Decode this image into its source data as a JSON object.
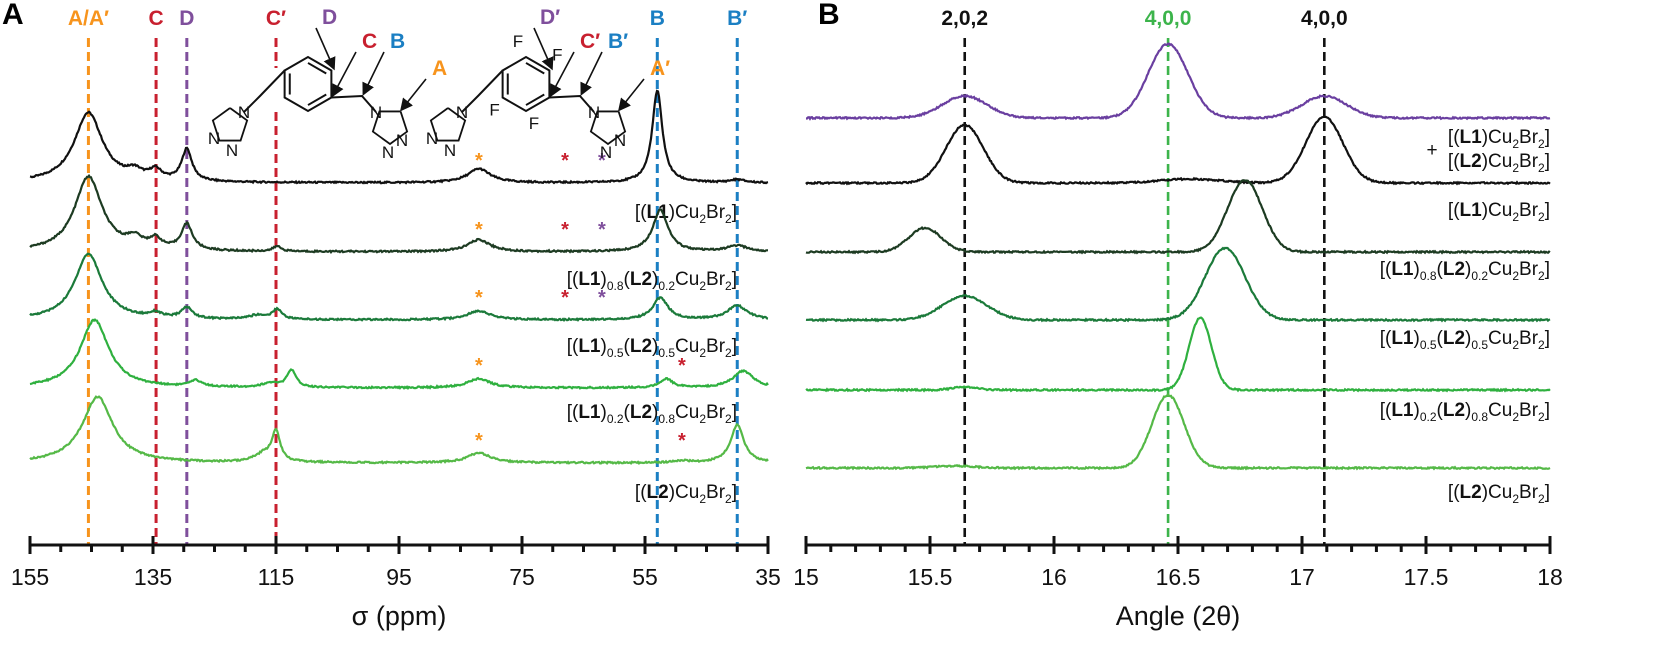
{
  "figure": {
    "panel_a_letter": "A",
    "panel_b_letter": "B",
    "colors": {
      "orange": "#f7941d",
      "red": "#c8202f",
      "purple": "#7f4f9c",
      "blue": "#1b7fc3",
      "green_ref": "#3cb44b",
      "black": "#111111",
      "purple_trace": "#6a3fa0",
      "trace_black": "#111111",
      "trace_dark": "#1d3b22",
      "trace_mid": "#1b7a3a",
      "trace_light": "#2fb03f",
      "trace_lighter": "#55b947"
    }
  },
  "chart_data": [
    {
      "type": "line",
      "panel": "A",
      "title": "",
      "xlabel": "σ (ppm)",
      "ylabel": "",
      "xlim": [
        155,
        35
      ],
      "x_reversed": true,
      "x_ticks": [
        155,
        135,
        115,
        95,
        75,
        55,
        35
      ],
      "x_minor_step": 5,
      "grid": false,
      "reference_lines": [
        {
          "label": "A/A′",
          "x": 145.5,
          "color": "orange"
        },
        {
          "label": "C",
          "x": 134.5,
          "color": "red"
        },
        {
          "label": "D",
          "x": 129.5,
          "color": "purple"
        },
        {
          "label": "C′",
          "x": 115.0,
          "color": "red"
        },
        {
          "label": "B",
          "x": 53.0,
          "color": "blue"
        },
        {
          "label": "B′",
          "x": 40.0,
          "color": "blue"
        }
      ],
      "structure_labels": {
        "L1": [
          "D",
          "C",
          "B",
          "A"
        ],
        "L2": [
          "D′",
          "C′",
          "B′",
          "A′"
        ],
        "atoms": {
          "N": "N",
          "F": "F"
        }
      },
      "series": [
        {
          "name": "[(L1)Cu2Br2]",
          "label_parts": [
            "[(",
            "L1",
            ")Cu",
            "2",
            "Br",
            "2",
            "]"
          ],
          "color": "trace_black",
          "peaks": [
            [
              145.5,
              70,
              2.8
            ],
            [
              138,
              8,
              1.5
            ],
            [
              134.6,
              10,
              1.2
            ],
            [
              129.5,
              32,
              1.0
            ],
            [
              82,
              14,
              2.2
            ],
            [
              53,
              92,
              1.0
            ],
            [
              40,
              3,
              1.5
            ]
          ],
          "stars": [
            {
              "x": 82,
              "color": "orange"
            },
            {
              "x": 68,
              "color": "red"
            },
            {
              "x": 62,
              "color": "purple"
            }
          ]
        },
        {
          "name": "[(L1)0.8(L2)0.2Cu2Br2]",
          "label_parts": [
            "[(",
            "L1",
            ")",
            "0.8",
            "(",
            "L2",
            ")",
            "0.2",
            "Cu",
            "2",
            "Br",
            "2",
            "]"
          ],
          "color": "trace_dark",
          "peaks": [
            [
              145.5,
              75,
              2.7
            ],
            [
              138,
              10,
              1.5
            ],
            [
              134.6,
              10,
              1.2
            ],
            [
              129.5,
              26,
              1.1
            ],
            [
              114.8,
              5,
              0.8
            ],
            [
              82,
              12,
              2.2
            ],
            [
              52.5,
              42,
              1.5
            ],
            [
              40,
              6,
              2.0
            ]
          ],
          "stars": [
            {
              "x": 82,
              "color": "orange"
            },
            {
              "x": 68,
              "color": "red"
            },
            {
              "x": 62,
              "color": "purple"
            }
          ]
        },
        {
          "name": "[(L1)0.5(L2)0.5Cu2Br2]",
          "label_parts": [
            "[(",
            "L1",
            ")",
            "0.5",
            "(",
            "L2",
            ")",
            "0.5",
            "Cu",
            "2",
            "Br",
            "2",
            "]"
          ],
          "color": "trace_mid",
          "peaks": [
            [
              145.5,
              66,
              2.7
            ],
            [
              134.6,
              5,
              1.2
            ],
            [
              129.5,
              11,
              1.1
            ],
            [
              118,
              4,
              1.8
            ],
            [
              114.8,
              10,
              0.9
            ],
            [
              82,
              9,
              2.2
            ],
            [
              52.5,
              22,
              1.5
            ],
            [
              40,
              14,
              2.0
            ]
          ],
          "stars": [
            {
              "x": 82,
              "color": "orange"
            },
            {
              "x": 68,
              "color": "red"
            },
            {
              "x": 62,
              "color": "purple"
            }
          ]
        },
        {
          "name": "[(L1)0.2(L2)0.8Cu2Br2]",
          "label_parts": [
            "[(",
            "L1",
            ")",
            "0.2",
            "(",
            "L2",
            ")",
            "0.8",
            "Cu",
            "2",
            "Br",
            "2",
            "]"
          ],
          "color": "trace_light",
          "peaks": [
            [
              144.5,
              68,
              2.8
            ],
            [
              128,
              6,
              1.2
            ],
            [
              116,
              4,
              1.6
            ],
            [
              112.5,
              17,
              0.9
            ],
            [
              82,
              9,
              2.2
            ],
            [
              51.5,
              9,
              1.2
            ],
            [
              39,
              17,
              2.0
            ]
          ],
          "stars": [
            {
              "x": 82,
              "color": "orange"
            },
            {
              "x": 49,
              "color": "red"
            }
          ]
        },
        {
          "name": "[(L2)Cu2Br2]",
          "label_parts": [
            "[(",
            "L2",
            ")Cu",
            "2",
            "Br",
            "2",
            "]"
          ],
          "color": "trace_lighter",
          "peaks": [
            [
              144,
              66,
              3.0
            ],
            [
              117,
              8,
              1.8
            ],
            [
              115,
              30,
              0.8
            ],
            [
              82,
              10,
              2.2
            ],
            [
              49,
              2,
              1.5
            ],
            [
              40,
              38,
              1.3
            ]
          ],
          "stars": [
            {
              "x": 82,
              "color": "orange"
            },
            {
              "x": 49,
              "color": "red"
            }
          ]
        }
      ]
    },
    {
      "type": "line",
      "panel": "B",
      "title": "",
      "xlabel": "Angle (2θ)",
      "ylabel": "",
      "xlim": [
        15,
        18
      ],
      "x_ticks": [
        15,
        15.5,
        16,
        16.5,
        17,
        17.5,
        18
      ],
      "x_tick_labels": [
        "15",
        "15.5",
        "16",
        "16.5",
        "17",
        "17.5",
        "18"
      ],
      "x_minor_step": 0.1,
      "grid": false,
      "reference_lines": [
        {
          "label": "2,0,2",
          "x": 15.64,
          "color": "black"
        },
        {
          "label": "4,0,0",
          "x": 16.46,
          "color": "green_ref"
        },
        {
          "label": "4,0,0",
          "x": 17.09,
          "color": "black"
        }
      ],
      "series": [
        {
          "name": "(purple, unlabeled)",
          "label_parts": [],
          "color": "purple_trace",
          "peaks": [
            [
              15.64,
              22,
              0.09
            ],
            [
              16.46,
              74,
              0.08
            ],
            [
              17.09,
              22,
              0.09
            ]
          ]
        },
        {
          "name": "[(L1)Cu2Br2] + [(L2)Cu2Br2]",
          "label_parts": [
            "[(",
            "L1",
            ")Cu",
            "2",
            "Br",
            "2",
            "]",
            "+",
            "[(",
            "L2",
            ")Cu",
            "2",
            "Br",
            "2",
            "]"
          ],
          "color": "trace_black",
          "peaks": [
            [
              15.64,
              58,
              0.075
            ],
            [
              16.55,
              4,
              0.12
            ],
            [
              17.09,
              66,
              0.075
            ]
          ]
        },
        {
          "name": "[(L1)Cu2Br2]",
          "label_parts": [
            "[(",
            "L1",
            ")Cu",
            "2",
            "Br",
            "2",
            "]"
          ],
          "color": "trace_dark",
          "peaks": [
            [
              15.48,
              24,
              0.065
            ],
            [
              16.77,
              72,
              0.07
            ]
          ]
        },
        {
          "name": "[(L1)0.8(L2)0.2Cu2Br2]",
          "label_parts": [
            "[(",
            "L1",
            ")",
            "0.8",
            "(",
            "L2",
            ")",
            "0.2",
            "Cu",
            "2",
            "Br",
            "2",
            "]"
          ],
          "color": "trace_mid",
          "peaks": [
            [
              15.64,
              24,
              0.09
            ],
            [
              16.69,
              72,
              0.08
            ]
          ]
        },
        {
          "name": "[(L1)0.5(L2)0.5Cu2Br2]",
          "label_parts": [
            "[(",
            "L1",
            ")",
            "0.5",
            "(",
            "L2",
            ")",
            "0.5",
            "Cu",
            "2",
            "Br",
            "2",
            "]"
          ],
          "color": "trace_light",
          "peaks": [
            [
              15.64,
              3,
              0.05
            ],
            [
              16.59,
              72,
              0.045
            ]
          ]
        },
        {
          "name": "[(L1)0.2(L2)0.8Cu2Br2]",
          "label_parts": [
            "[(",
            "L1",
            ")",
            "0.2",
            "(",
            "L2",
            ")",
            "0.8",
            "Cu",
            "2",
            "Br",
            "2",
            "]"
          ],
          "color": "trace_lighter",
          "peaks": [
            [
              15.6,
              2,
              0.08
            ],
            [
              16.46,
              73,
              0.065
            ]
          ]
        }
      ],
      "bottom_label": {
        "name": "[(L2)Cu2Br2]",
        "label_parts": [
          "[(",
          "L2",
          ")Cu",
          "2",
          "Br",
          "2",
          "]"
        ]
      }
    }
  ]
}
